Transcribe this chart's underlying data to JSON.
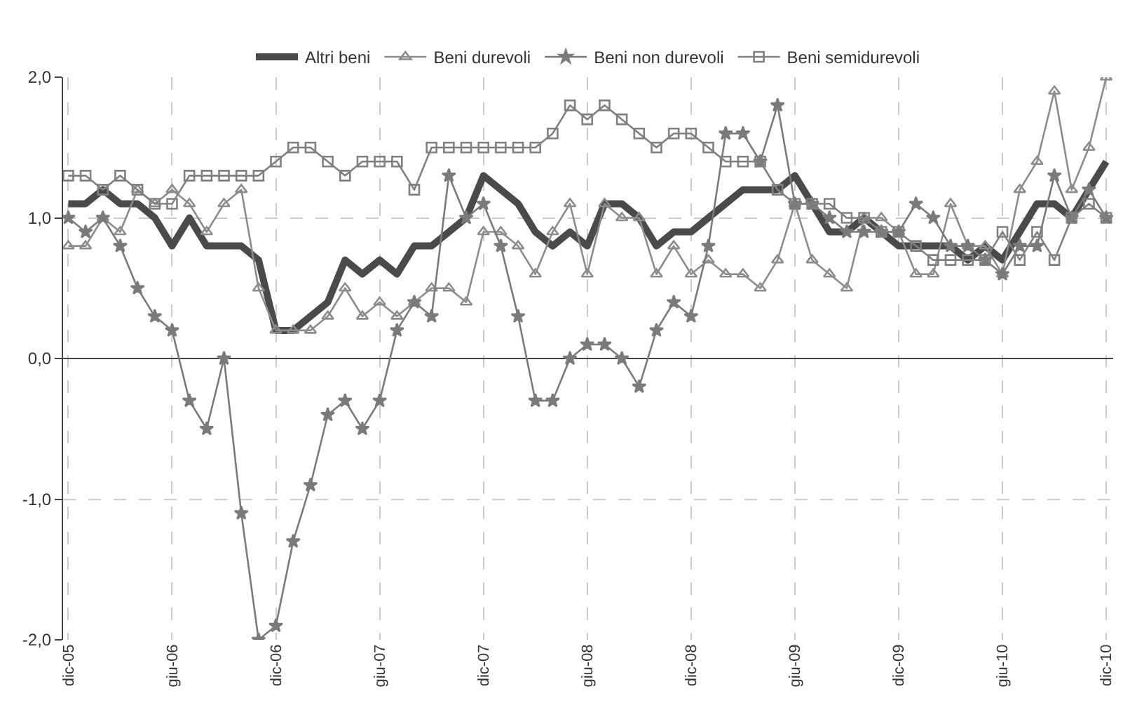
{
  "chart_data": {
    "type": "line",
    "categories": [
      "dic-05",
      null,
      null,
      null,
      null,
      null,
      "giu-06",
      null,
      null,
      null,
      null,
      null,
      "dic-06",
      null,
      null,
      null,
      null,
      null,
      "giu-07",
      null,
      null,
      null,
      null,
      null,
      "dic-07",
      null,
      null,
      null,
      null,
      null,
      "giu-08",
      null,
      null,
      null,
      null,
      null,
      "dic-08",
      null,
      null,
      null,
      null,
      null,
      "giu-09",
      null,
      null,
      null,
      null,
      null,
      "dic-09",
      null,
      null,
      null,
      null,
      null,
      "giu-10",
      null,
      null,
      null,
      null,
      null,
      "dic-10"
    ],
    "series": [
      {
        "name": "Altri beni",
        "color": "#4a4a4a",
        "marker": "none",
        "values": [
          1.1,
          1.1,
          1.2,
          1.1,
          1.1,
          1.0,
          0.8,
          1.0,
          0.8,
          0.8,
          0.8,
          0.7,
          0.2,
          0.2,
          0.3,
          0.4,
          0.7,
          0.6,
          0.7,
          0.6,
          0.8,
          0.8,
          0.9,
          1.0,
          1.3,
          1.2,
          1.1,
          0.9,
          0.8,
          0.9,
          0.8,
          1.1,
          1.1,
          1.0,
          0.8,
          0.9,
          0.9,
          1.0,
          1.1,
          1.2,
          1.2,
          1.2,
          1.3,
          1.1,
          0.9,
          0.9,
          1.0,
          0.9,
          0.8,
          0.8,
          0.8,
          0.8,
          0.7,
          0.8,
          0.7,
          0.9,
          1.1,
          1.1,
          1.0,
          1.2,
          1.4
        ]
      },
      {
        "name": "Beni durevoli",
        "color": "#8c8c8c",
        "marker": "triangle",
        "values": [
          0.8,
          0.8,
          1.0,
          0.9,
          1.2,
          1.1,
          1.2,
          1.1,
          0.9,
          1.1,
          1.2,
          0.5,
          0.2,
          0.2,
          0.2,
          0.3,
          0.5,
          0.3,
          0.4,
          0.3,
          0.4,
          0.5,
          0.5,
          0.4,
          0.9,
          0.9,
          0.8,
          0.6,
          0.9,
          1.1,
          0.6,
          1.1,
          1.0,
          1.0,
          0.6,
          0.8,
          0.6,
          0.7,
          0.6,
          0.6,
          0.5,
          0.7,
          1.1,
          0.7,
          0.6,
          0.5,
          1.0,
          1.0,
          0.9,
          0.6,
          0.6,
          1.1,
          0.8,
          0.8,
          0.6,
          1.2,
          1.4,
          1.9,
          1.2,
          1.5,
          2.0
        ]
      },
      {
        "name": "Beni non durevoli",
        "color": "#7a7a7a",
        "marker": "star",
        "values": [
          1.0,
          0.9,
          1.0,
          0.8,
          0.5,
          0.3,
          0.2,
          -0.3,
          -0.5,
          0.0,
          -1.1,
          -2.0,
          -1.9,
          -1.3,
          -0.9,
          -0.4,
          -0.3,
          -0.5,
          -0.3,
          0.2,
          0.4,
          0.3,
          1.3,
          1.0,
          1.1,
          0.8,
          0.3,
          -0.3,
          -0.3,
          0.0,
          0.1,
          0.1,
          0.0,
          -0.2,
          0.2,
          0.4,
          0.3,
          0.8,
          1.6,
          1.6,
          1.4,
          1.8,
          1.1,
          1.1,
          1.0,
          0.9,
          0.9,
          0.9,
          0.9,
          1.1,
          1.0,
          0.8,
          0.8,
          0.7,
          0.6,
          0.8,
          0.8,
          1.3,
          1.0,
          1.2,
          1.0
        ]
      },
      {
        "name": "Beni semidurevoli",
        "color": "#808080",
        "marker": "square",
        "values": [
          1.3,
          1.3,
          1.2,
          1.3,
          1.2,
          1.1,
          1.1,
          1.3,
          1.3,
          1.3,
          1.3,
          1.3,
          1.4,
          1.5,
          1.5,
          1.4,
          1.3,
          1.4,
          1.4,
          1.4,
          1.2,
          1.5,
          1.5,
          1.5,
          1.5,
          1.5,
          1.5,
          1.5,
          1.6,
          1.8,
          1.7,
          1.8,
          1.7,
          1.6,
          1.5,
          1.6,
          1.6,
          1.5,
          1.4,
          1.4,
          1.4,
          1.2,
          1.1,
          1.1,
          1.1,
          1.0,
          1.0,
          0.9,
          0.9,
          0.8,
          0.7,
          0.7,
          0.7,
          0.7,
          0.9,
          0.7,
          0.9,
          0.7,
          1.0,
          1.1,
          1.0
        ]
      }
    ],
    "ylim": [
      -2.0,
      2.0
    ],
    "yticks": [
      {
        "value": 2.0,
        "label": "2,0"
      },
      {
        "value": 1.0,
        "label": "1,0"
      },
      {
        "value": 0.0,
        "label": "0,0"
      },
      {
        "value": -1.0,
        "label": "-1,0"
      },
      {
        "value": -2.0,
        "label": "-2,0"
      }
    ],
    "grid": true,
    "legend": "top"
  }
}
